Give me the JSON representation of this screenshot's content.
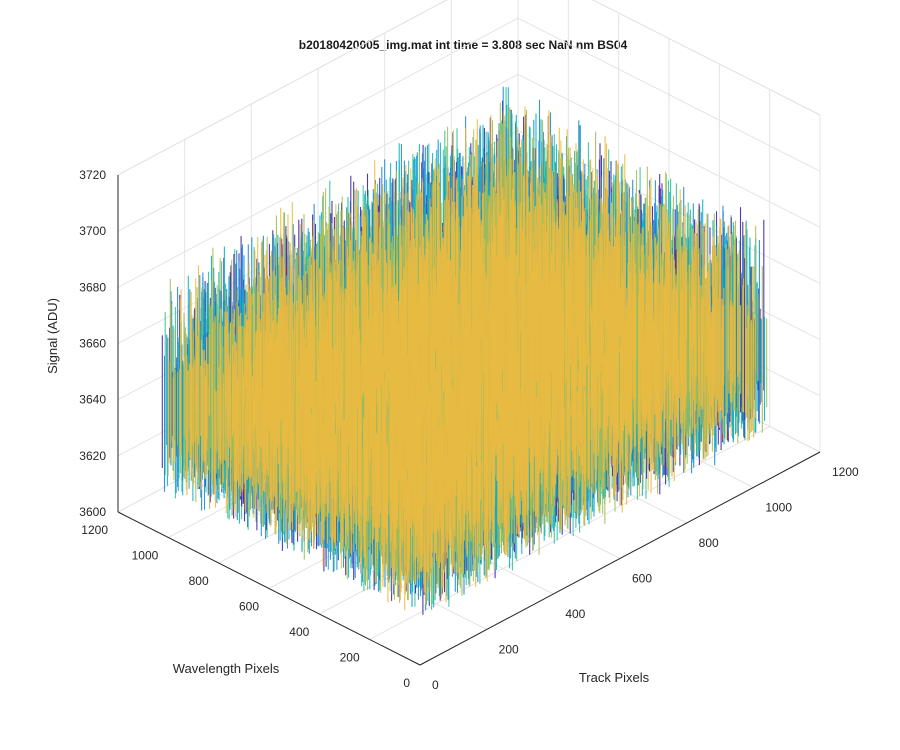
{
  "chart_data": {
    "type": "surface",
    "title": "b20180420005_img.mat int time = 3.808 sec  NaN nm BS04",
    "xlabel": "Track Pixels",
    "ylabel": "Wavelength Pixels",
    "zlabel": "Signal (ADU)",
    "xlim": [
      0,
      1200
    ],
    "ylim": [
      0,
      1200
    ],
    "zlim": [
      3600,
      3720
    ],
    "x_ticks": [
      0,
      200,
      400,
      600,
      800,
      1000,
      1200
    ],
    "y_ticks": [
      0,
      200,
      400,
      600,
      800,
      1000,
      1200
    ],
    "z_ticks": [
      3600,
      3620,
      3640,
      3660,
      3680,
      3700,
      3720
    ],
    "x_tick_labels": [
      "0",
      "200",
      "400",
      "600",
      "800",
      "1000",
      "1200"
    ],
    "y_tick_labels": [
      "0",
      "200",
      "400",
      "600",
      "800",
      "1000",
      "1200"
    ],
    "z_tick_labels": [
      "3600",
      "3620",
      "3640",
      "3660",
      "3680",
      "3700",
      "3720"
    ],
    "grid": true,
    "colormap": [
      "#3e26a8",
      "#1f8ad5",
      "#0ab3c7",
      "#35c19b",
      "#a6be54",
      "#f0b93f"
    ],
    "surface": {
      "x_extent": [
        0,
        1040
      ],
      "y_extent": [
        0,
        1024
      ],
      "mean_signal": 3645,
      "noise_range": [
        3615,
        3695
      ]
    }
  }
}
